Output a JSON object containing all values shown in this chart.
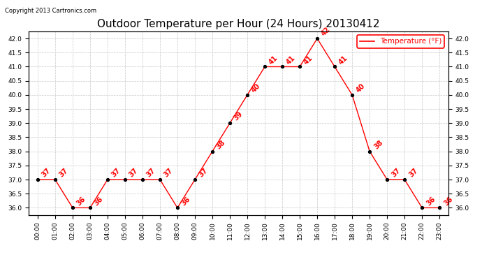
{
  "title": "Outdoor Temperature per Hour (24 Hours) 20130412",
  "copyright_text": "Copyright 2013 Cartronics.com",
  "legend_label": "Temperature (°F)",
  "hours": [
    "00:00",
    "01:00",
    "02:00",
    "03:00",
    "04:00",
    "05:00",
    "06:00",
    "07:00",
    "08:00",
    "09:00",
    "10:00",
    "11:00",
    "12:00",
    "13:00",
    "14:00",
    "15:00",
    "16:00",
    "17:00",
    "18:00",
    "19:00",
    "20:00",
    "21:00",
    "22:00",
    "23:00"
  ],
  "temperatures": [
    37,
    37,
    36,
    36,
    37,
    37,
    37,
    37,
    36,
    37,
    38,
    39,
    40,
    41,
    41,
    41,
    42,
    41,
    40,
    38,
    37,
    37,
    36,
    36
  ],
  "line_color": "red",
  "marker_color": "black",
  "label_color": "red",
  "bg_color": "white",
  "grid_color": "#c8c8c8",
  "ylim": [
    35.75,
    42.25
  ],
  "yticks": [
    36.0,
    36.5,
    37.0,
    37.5,
    38.0,
    38.5,
    39.0,
    39.5,
    40.0,
    40.5,
    41.0,
    41.5,
    42.0
  ],
  "title_fontsize": 11,
  "label_fontsize": 7,
  "tick_fontsize": 6.5,
  "copyright_fontsize": 6,
  "legend_fontsize": 7.5
}
